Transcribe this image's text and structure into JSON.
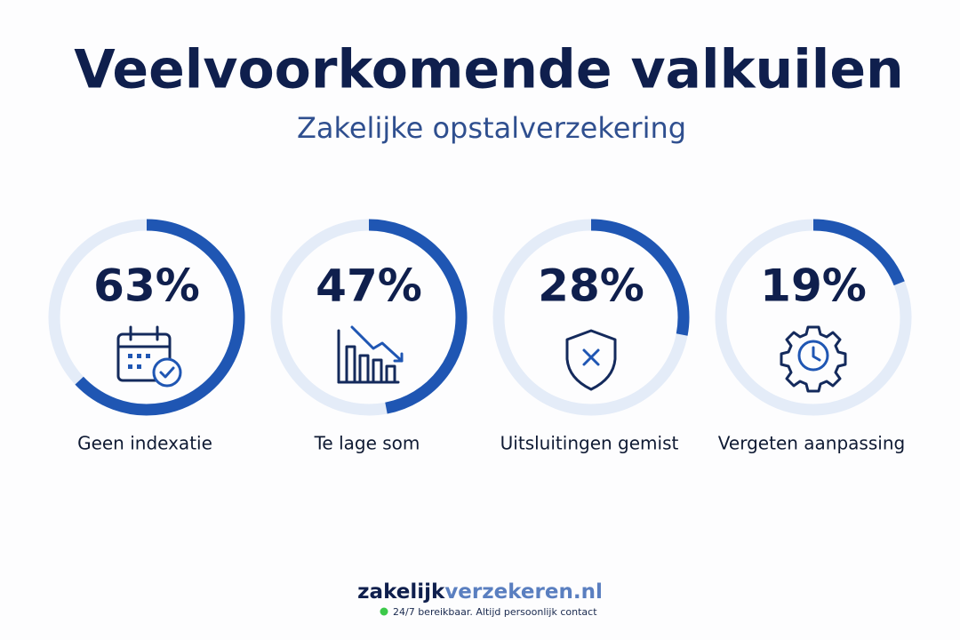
{
  "chart_data": {
    "type": "donut",
    "title": "Veelvoorkomende valkuilen",
    "subtitle": "Zakelijke opstalverzekering",
    "categories": [
      "Geen indexatie",
      "Te lage som",
      "Uitsluitingen gemist",
      "Vergeten aanpassing"
    ],
    "values": [
      63,
      47,
      28,
      19
    ],
    "value_labels": [
      "63%",
      "47%",
      "28%",
      "19%"
    ],
    "color": "#1f56b3",
    "track_color": "#e4ecf8"
  },
  "footer": {
    "brand": [
      "zakelijk",
      "verzekeren.nl"
    ],
    "tagline": "24/7 bereikbaar. Altijd persoonlijk contact"
  }
}
